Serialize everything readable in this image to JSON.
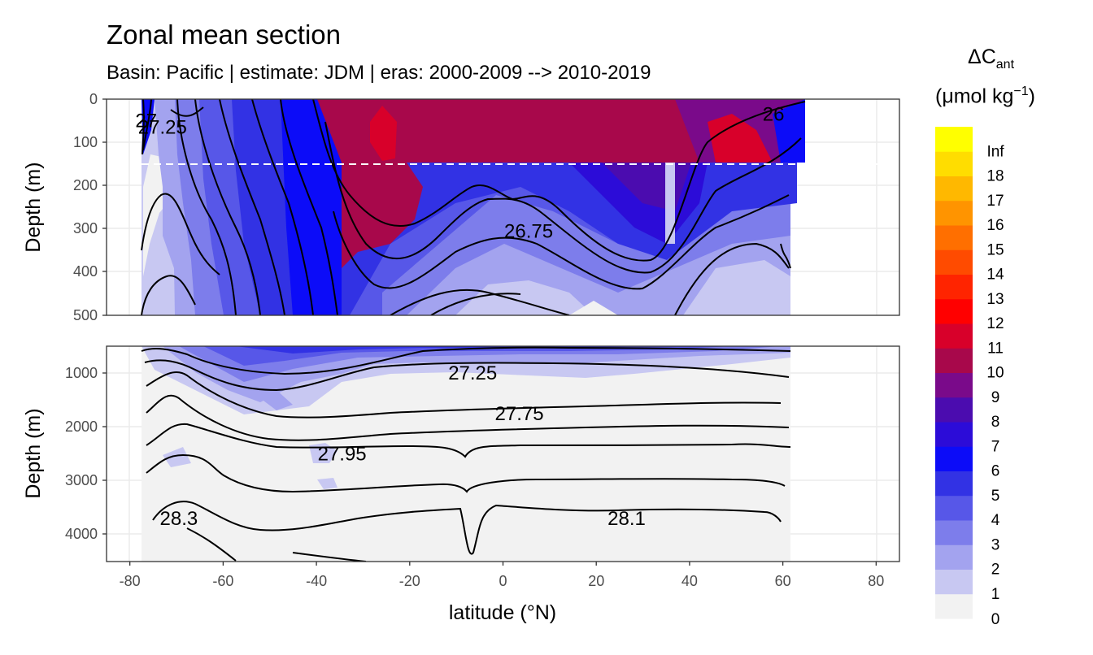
{
  "chart_data": {
    "type": "heatmap",
    "title": "Zonal mean section",
    "subtitle": "Basin: Pacific | estimate: JDM  | eras: 2000-2009 --> 2010-2019",
    "xlabel": "latitude (°N)",
    "xlim": [
      -85,
      85
    ],
    "x_ticks": [
      "-80",
      "-60",
      "-40",
      "-20",
      "0",
      "20",
      "40",
      "60",
      "80"
    ],
    "panels": [
      {
        "name": "upper",
        "ylabel": "Depth (m)",
        "ylim": [
          0,
          500
        ],
        "y_ticks": [
          "0",
          "100",
          "200",
          "300",
          "400",
          "500"
        ],
        "reference_depth": 150
      },
      {
        "name": "lower",
        "ylabel": "Depth (m)",
        "ylim": [
          500,
          4500
        ],
        "y_ticks": [
          "1000",
          "2000",
          "3000",
          "4000"
        ]
      }
    ],
    "contour_labels": [
      {
        "text": "27",
        "lat": -76.5,
        "depth": 50,
        "panel": "upper"
      },
      {
        "text": "27.25",
        "lat": -73,
        "depth": 65,
        "panel": "upper"
      },
      {
        "text": "26",
        "lat": 58,
        "depth": 35,
        "panel": "upper"
      },
      {
        "text": "26.75",
        "lat": 5.5,
        "depth": 305,
        "panel": "upper"
      },
      {
        "text": "27.25",
        "lat": -6.5,
        "depth": 1000,
        "panel": "lower"
      },
      {
        "text": "27.75",
        "lat": 3.5,
        "depth": 1750,
        "panel": "lower"
      },
      {
        "text": "27.95",
        "lat": -34.5,
        "depth": 2500,
        "panel": "lower"
      },
      {
        "text": "28.3",
        "lat": -69.5,
        "depth": 3700,
        "panel": "lower"
      },
      {
        "text": "28.1",
        "lat": 26.5,
        "depth": 3700,
        "panel": "lower"
      }
    ],
    "legend": {
      "title": "ΔC",
      "title_sub": "ant",
      "unit": "(μmol kg",
      "unit_sup": "−1",
      "unit_end": ")",
      "breaks": [
        "0",
        "1",
        "2",
        "3",
        "4",
        "5",
        "6",
        "7",
        "8",
        "9",
        "10",
        "11",
        "12",
        "13",
        "14",
        "15",
        "16",
        "17",
        "18",
        "Inf"
      ],
      "colors": [
        "#f2f2f2",
        "#c8c8f2",
        "#a3a3ef",
        "#7d7deb",
        "#5757e8",
        "#3232e4",
        "#0c0cf8",
        "#2c0cd8",
        "#4b0caf",
        "#7a0a8a",
        "#a8084b",
        "#d8002a",
        "#ff0000",
        "#ff2400",
        "#ff4b00",
        "#ff6f00",
        "#ff9400",
        "#ffb800",
        "#ffdd00",
        "#ffff00"
      ]
    }
  }
}
